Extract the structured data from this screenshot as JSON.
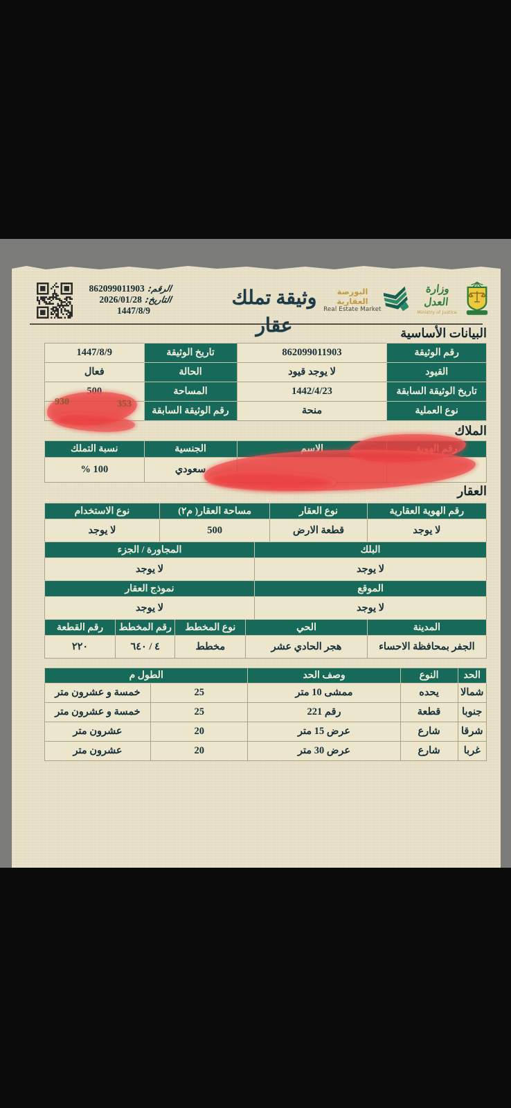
{
  "colors": {
    "header_green": "#17695a",
    "paper": "#e9e2c8",
    "ink": "#18303a",
    "redaction_red": "#ea4040",
    "viewer_gray": "#7b7b79"
  },
  "header": {
    "number_label": "الرقم:",
    "number": "862099011903",
    "date_label": "التاريخ:",
    "date_gregorian": "2026/01/28",
    "date_hijri": "1447/8/9",
    "title": "وثيقة تملك عقار",
    "rem_logo": {
      "ar": "البورصة العقارية",
      "en": "Real Estate Market"
    },
    "moj_logo": {
      "ar": "وزارة العدل",
      "en": "Ministry of Justice"
    }
  },
  "basic": {
    "title": "البيانات الأساسية",
    "rows": [
      {
        "l1": "رقم الوثيقة",
        "v1": "862099011903",
        "l2": "تاريخ الوثيقة",
        "v2": "1447/8/9"
      },
      {
        "l1": "القيود",
        "v1": "لا يوجد قيود",
        "l2": "الحالة",
        "v2": "فعال"
      },
      {
        "l1": "تاريخ الوثيقة السابقة",
        "v1": "1442/4/23",
        "l2": "المساحة",
        "v2": "500"
      },
      {
        "l1": "نوع العملية",
        "v1": "منحة",
        "l2": "رقم الوثيقة السابقة",
        "v2": ""
      }
    ]
  },
  "owners": {
    "title": "الملاك",
    "headers": {
      "id": "رقم الهوية",
      "name": "الاسم",
      "nationality": "الجنسية",
      "share": "نسبة التملك"
    },
    "row": {
      "id": "",
      "name": "",
      "nationality": "سعودي",
      "share": "100 %"
    }
  },
  "property": {
    "title": "العقار",
    "g1": {
      "h1": "رقم الهوية العقارية",
      "h2": "نوع العقار",
      "h3": "مساحة العقار( م٢)",
      "h4": "نوع الاستخدام",
      "v1": "لا يوجد",
      "v2": "قطعة الارض",
      "v3": "500",
      "v4": "لا يوجد"
    },
    "g2": {
      "h1": "البلك",
      "h2": "المجاورة / الجزء",
      "v1": "لا يوجد",
      "v2": "لا يوجد"
    },
    "g3": {
      "h1": "الموقع",
      "h2": "نموذج العقار",
      "v1": "لا يوجد",
      "v2": "لا يوجد"
    },
    "g4": {
      "h1": "المدينة",
      "h2": "الحي",
      "h3": "نوع المخطط",
      "h4": "رقم المخطط",
      "h5": "رقم القطعة",
      "v1": "الجفر بمحافظة الاحساء",
      "v2": "هجر الحادي عشر",
      "v3": "مخطط",
      "v4": "٤ / ٦٤٠",
      "v5": "٢٢٠"
    }
  },
  "bounds": {
    "headers": {
      "side": "الحد",
      "type": "النوع",
      "desc": "وصف الحد",
      "length": "الطول م"
    },
    "rows": [
      {
        "side": "شمالا",
        "type": "يحده",
        "desc": "ممشى 10 متر",
        "num": "25",
        "text": "خمسة و عشرون متر"
      },
      {
        "side": "جنوبا",
        "type": "قطعة",
        "desc": "رقم 221",
        "num": "25",
        "text": "خمسة و عشرون متر"
      },
      {
        "side": "شرقا",
        "type": "شارع",
        "desc": "عرض 15 متر",
        "num": "20",
        "text": "عشرون متر"
      },
      {
        "side": "غربا",
        "type": "شارع",
        "desc": "عرض 30 متر",
        "num": "20",
        "text": "عشرون متر"
      }
    ]
  },
  "redactions": {
    "prev_doc_number_fragment_left": "930",
    "prev_doc_number_fragment_right": "353"
  }
}
